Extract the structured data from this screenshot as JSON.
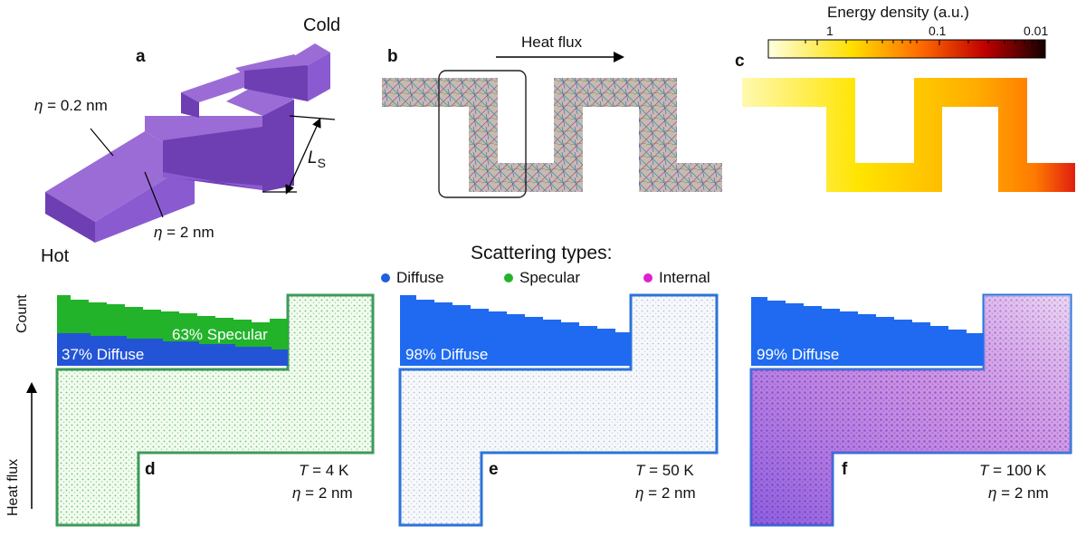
{
  "panel_a": {
    "letter": "a",
    "cold": "Cold",
    "hot": "Hot",
    "eta_sym": "η",
    "eta_thin_val": " = 0.2 nm",
    "eta_thick_val": " = 2 nm",
    "ls_main": "L",
    "ls_sub": "S",
    "colors": {
      "top": "#9b6cd6",
      "side": "#6e3fb3",
      "front": "#8a5bd0"
    }
  },
  "panel_b": {
    "letter": "b",
    "arrow_label": "Heat flux"
  },
  "panel_c": {
    "letter": "c",
    "colorbar_title": "Energy density (a.u.)",
    "colorbar_ticks": [
      "1",
      "0.1",
      "0.01"
    ],
    "colorbar_scale": "log"
  },
  "legend": {
    "title": "Scattering types:",
    "items": [
      {
        "label": "Diffuse",
        "color": "#1f5fe0"
      },
      {
        "label": "Specular",
        "color": "#22b32a"
      },
      {
        "label": "Internal",
        "color": "#e020d0"
      }
    ]
  },
  "left_axis": {
    "count_label": "Count",
    "heat_flux_label": "Heat flux"
  },
  "panels_lower": [
    {
      "letter": "d",
      "T_sym": "T",
      "T_val": " = 4 K",
      "eta_sym": "η",
      "eta_val": " = 2 nm",
      "diffuse_label": "37% Diffuse",
      "specular_label": "63% Specular",
      "diffuse_pct": 37,
      "specular_pct": 63
    },
    {
      "letter": "e",
      "T_sym": "T",
      "T_val": " = 50 K",
      "eta_sym": "η",
      "eta_val": " = 2 nm",
      "diffuse_label": "98% Diffuse",
      "diffuse_pct": 98
    },
    {
      "letter": "f",
      "T_sym": "T",
      "T_val": " = 100 K",
      "eta_sym": "η",
      "eta_val": " = 2 nm",
      "diffuse_label": "99% Diffuse",
      "diffuse_pct": 99
    }
  ]
}
